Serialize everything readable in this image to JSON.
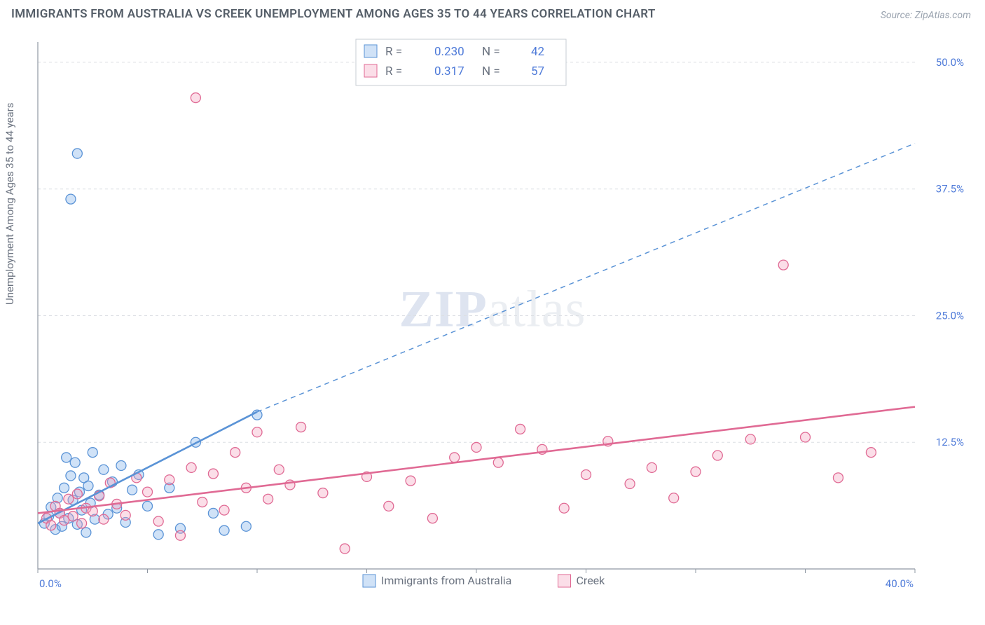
{
  "title": "IMMIGRANTS FROM AUSTRALIA VS CREEK UNEMPLOYMENT AMONG AGES 35 TO 44 YEARS CORRELATION CHART",
  "source": "Source: ZipAtlas.com",
  "y_axis_label": "Unemployment Among Ages 35 to 44 years",
  "watermark_a": "ZIP",
  "watermark_b": "atlas",
  "chart": {
    "type": "scatter",
    "background_color": "#ffffff",
    "grid_color": "#dcdfe4",
    "axis_color": "#8f98a3",
    "xlim": [
      0,
      40
    ],
    "ylim": [
      0,
      52
    ],
    "x_ticks": [
      0,
      5,
      10,
      15,
      20,
      25,
      30,
      35,
      40
    ],
    "y_gridlines": [
      12.5,
      25.0,
      37.5,
      50.0
    ],
    "x_tick_labels": {
      "min": "0.0%",
      "max": "40.0%"
    },
    "y_tick_labels": [
      "12.5%",
      "25.0%",
      "37.5%",
      "50.0%"
    ],
    "series": [
      {
        "name": "Immigrants from Australia",
        "short": "blue",
        "fill": "rgba(121,171,232,0.35)",
        "stroke": "#5a93d6",
        "R": "0.230",
        "N": "42",
        "marker_radius": 7,
        "trend": {
          "x1": 0,
          "y1": 4.5,
          "x2": 10,
          "y2": 15.5,
          "dash_x2": 40,
          "dash_y2": 42.0
        },
        "points": [
          [
            0.3,
            4.5
          ],
          [
            0.5,
            5.2
          ],
          [
            0.6,
            6.1
          ],
          [
            0.8,
            3.9
          ],
          [
            0.9,
            7.0
          ],
          [
            1.0,
            5.5
          ],
          [
            1.1,
            4.2
          ],
          [
            1.2,
            8.0
          ],
          [
            1.3,
            11.0
          ],
          [
            1.4,
            5.0
          ],
          [
            1.5,
            9.2
          ],
          [
            1.5,
            36.5
          ],
          [
            1.6,
            6.8
          ],
          [
            1.7,
            10.5
          ],
          [
            1.8,
            4.4
          ],
          [
            1.8,
            41.0
          ],
          [
            1.9,
            7.6
          ],
          [
            2.0,
            5.8
          ],
          [
            2.1,
            9.0
          ],
          [
            2.2,
            3.6
          ],
          [
            2.3,
            8.2
          ],
          [
            2.4,
            6.5
          ],
          [
            2.5,
            11.5
          ],
          [
            2.6,
            4.9
          ],
          [
            2.8,
            7.3
          ],
          [
            3.0,
            9.8
          ],
          [
            3.2,
            5.4
          ],
          [
            3.4,
            8.6
          ],
          [
            3.6,
            6.0
          ],
          [
            3.8,
            10.2
          ],
          [
            4.0,
            4.6
          ],
          [
            4.3,
            7.8
          ],
          [
            4.6,
            9.3
          ],
          [
            5.0,
            6.2
          ],
          [
            5.5,
            3.4
          ],
          [
            6.0,
            8.0
          ],
          [
            6.5,
            4.0
          ],
          [
            7.2,
            12.5
          ],
          [
            8.0,
            5.5
          ],
          [
            8.5,
            3.8
          ],
          [
            9.5,
            4.2
          ],
          [
            10.0,
            15.2
          ]
        ]
      },
      {
        "name": "Creek",
        "short": "pink",
        "fill": "rgba(244,160,188,0.35)",
        "stroke": "#e06a94",
        "R": "0.317",
        "N": "57",
        "marker_radius": 7,
        "trend": {
          "x1": 0,
          "y1": 5.5,
          "x2": 40,
          "y2": 16.0
        },
        "points": [
          [
            0.4,
            5.0
          ],
          [
            0.6,
            4.3
          ],
          [
            0.8,
            6.2
          ],
          [
            1.0,
            5.5
          ],
          [
            1.2,
            4.8
          ],
          [
            1.4,
            6.9
          ],
          [
            1.6,
            5.2
          ],
          [
            1.8,
            7.4
          ],
          [
            2.0,
            4.5
          ],
          [
            2.2,
            6.0
          ],
          [
            2.5,
            5.7
          ],
          [
            2.8,
            7.2
          ],
          [
            3.0,
            4.9
          ],
          [
            3.3,
            8.5
          ],
          [
            3.6,
            6.4
          ],
          [
            4.0,
            5.3
          ],
          [
            4.5,
            9.0
          ],
          [
            5.0,
            7.6
          ],
          [
            5.5,
            4.7
          ],
          [
            6.0,
            8.8
          ],
          [
            6.5,
            3.3
          ],
          [
            7.0,
            10.0
          ],
          [
            7.2,
            46.5
          ],
          [
            7.5,
            6.6
          ],
          [
            8.0,
            9.4
          ],
          [
            8.5,
            5.8
          ],
          [
            9.0,
            11.5
          ],
          [
            9.5,
            8.0
          ],
          [
            10.0,
            13.5
          ],
          [
            10.5,
            6.9
          ],
          [
            11.0,
            9.8
          ],
          [
            11.5,
            8.3
          ],
          [
            12.0,
            14.0
          ],
          [
            13.0,
            7.5
          ],
          [
            14.0,
            2.0
          ],
          [
            15.0,
            9.1
          ],
          [
            16.0,
            6.2
          ],
          [
            17.0,
            8.7
          ],
          [
            18.0,
            5.0
          ],
          [
            19.0,
            11.0
          ],
          [
            20.0,
            12.0
          ],
          [
            21.0,
            10.5
          ],
          [
            22.0,
            13.8
          ],
          [
            23.0,
            11.8
          ],
          [
            24.0,
            6.0
          ],
          [
            25.0,
            9.3
          ],
          [
            26.0,
            12.6
          ],
          [
            27.0,
            8.4
          ],
          [
            28.0,
            10.0
          ],
          [
            29.0,
            7.0
          ],
          [
            30.0,
            9.6
          ],
          [
            31.0,
            11.2
          ],
          [
            32.5,
            12.8
          ],
          [
            34.0,
            30.0
          ],
          [
            35.0,
            13.0
          ],
          [
            36.5,
            9.0
          ],
          [
            38.0,
            11.5
          ]
        ]
      }
    ],
    "legend_top": {
      "rows": [
        {
          "swatch": 0,
          "R_label": "R =",
          "N_label": "N ="
        },
        {
          "swatch": 1,
          "R_label": "R =",
          "N_label": "N ="
        }
      ]
    },
    "legend_bottom": [
      {
        "swatch": 0
      },
      {
        "swatch": 1
      }
    ]
  }
}
